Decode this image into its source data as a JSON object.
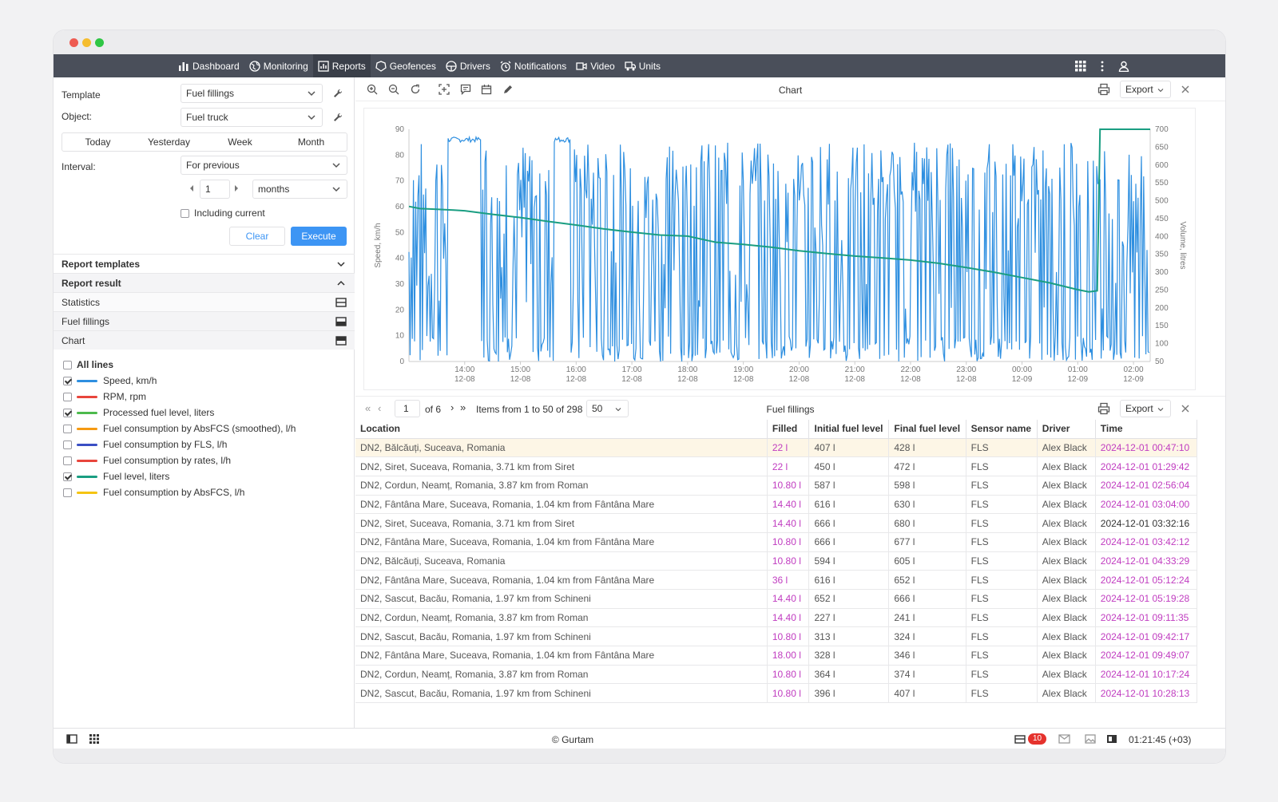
{
  "colors": {
    "nav_bg": "#4a4f5a",
    "accent": "#3d95f4",
    "speed": "#2e8fe0",
    "fuel": "#1a9e82",
    "pink": "#c03cc0"
  },
  "nav": {
    "items": [
      {
        "label": "Dashboard",
        "icon": "bar-chart-icon"
      },
      {
        "label": "Monitoring",
        "icon": "globe-icon"
      },
      {
        "label": "Reports",
        "icon": "report-icon"
      },
      {
        "label": "Geofences",
        "icon": "geofence-icon"
      },
      {
        "label": "Drivers",
        "icon": "steering-wheel-icon"
      },
      {
        "label": "Notifications",
        "icon": "alarm-icon"
      },
      {
        "label": "Video",
        "icon": "video-icon"
      },
      {
        "label": "Units",
        "icon": "truck-icon"
      }
    ]
  },
  "form": {
    "template_label": "Template",
    "template_value": "Fuel fillings",
    "object_label": "Object:",
    "object_value": "Fuel truck",
    "periods": [
      "Today",
      "Yesterday",
      "Week",
      "Month"
    ],
    "interval_label": "Interval:",
    "interval_value": "For previous",
    "count": "1",
    "unit": "months",
    "including_current": "Including current",
    "clear": "Clear",
    "execute": "Execute"
  },
  "sections": {
    "report_templates": "Report templates",
    "report_result": "Report result",
    "statistics": "Statistics",
    "fuel_fillings": "Fuel fillings",
    "chart": "Chart"
  },
  "legend": {
    "all_lines": "All lines",
    "items": [
      {
        "label": "Speed, km/h",
        "checked": true,
        "color": "#2e8fe0"
      },
      {
        "label": "RPM, rpm",
        "checked": false,
        "color": "#e8453c"
      },
      {
        "label": "Processed fuel level, liters",
        "checked": true,
        "color": "#4cba4c"
      },
      {
        "label": "Fuel consumption by AbsFCS (smoothed), l/h",
        "checked": false,
        "color": "#f59a12"
      },
      {
        "label": "Fuel consumption by FLS, l/h",
        "checked": false,
        "color": "#3a4fc4"
      },
      {
        "label": "Fuel consumption by rates, l/h",
        "checked": false,
        "color": "#e8453c"
      },
      {
        "label": "Fuel level, liters",
        "checked": true,
        "color": "#1a9e82"
      },
      {
        "label": "Fuel consumption by AbsFCS, l/h",
        "checked": false,
        "color": "#f5c412"
      }
    ]
  },
  "chart_panel": {
    "title": "Chart",
    "export": "Export"
  },
  "chart_data": {
    "type": "line",
    "ylabel": "Speed, km/h",
    "y2label": "Volume, litres",
    "ylim": [
      0,
      90
    ],
    "y2lim": [
      50,
      700
    ],
    "y_ticks": [
      "0",
      "10",
      "20",
      "30",
      "40",
      "50",
      "60",
      "70",
      "80",
      "90"
    ],
    "y2_ticks": [
      "50",
      "100",
      "150",
      "200",
      "250",
      "300",
      "350",
      "400",
      "450",
      "500",
      "550",
      "600",
      "650",
      "700"
    ],
    "x_ticks": [
      {
        "t": "14:00",
        "d": "12-08"
      },
      {
        "t": "15:00",
        "d": "12-08"
      },
      {
        "t": "16:00",
        "d": "12-08"
      },
      {
        "t": "17:00",
        "d": "12-08"
      },
      {
        "t": "18:00",
        "d": "12-08"
      },
      {
        "t": "19:00",
        "d": "12-08"
      },
      {
        "t": "20:00",
        "d": "12-08"
      },
      {
        "t": "21:00",
        "d": "12-08"
      },
      {
        "t": "22:00",
        "d": "12-08"
      },
      {
        "t": "23:00",
        "d": "12-08"
      },
      {
        "t": "00:00",
        "d": "12-09"
      },
      {
        "t": "01:00",
        "d": "12-09"
      },
      {
        "t": "02:00",
        "d": "12-09"
      }
    ],
    "series": [
      {
        "name": "Fuel level, liters",
        "axis": "right",
        "x": [
          13.0,
          13.2,
          13.5,
          13.8,
          14.0,
          14.5,
          15.0,
          15.5,
          16.0,
          16.5,
          17.0,
          17.5,
          18.0,
          18.5,
          19.0,
          19.5,
          20.0,
          20.5,
          21.0,
          21.5,
          22.0,
          22.5,
          23.0,
          23.5,
          24.0,
          24.5,
          25.0,
          25.2,
          25.35,
          25.4,
          26.3
        ],
        "values": [
          484,
          478,
          476,
          474,
          472,
          462,
          453,
          442,
          432,
          421,
          412,
          404,
          401,
          384,
          378,
          370,
          360,
          352,
          345,
          340,
          334,
          325,
          313,
          300,
          285,
          270,
          251,
          245,
          248,
          700,
          700
        ]
      },
      {
        "name": "Speed, km/h",
        "axis": "left",
        "note": "noisy speed trace between 0 and ~88 km/h"
      }
    ]
  },
  "pager": {
    "page": "1",
    "of": "of 6",
    "items": "Items from 1 to 50 of 298",
    "per_page": "50",
    "title": "Fuel fillings",
    "export": "Export"
  },
  "table": {
    "headers": [
      "Location",
      "Filled",
      "Initial fuel level",
      "Final fuel level",
      "Sensor name",
      "Driver",
      "Time"
    ],
    "rows": [
      [
        "DN2, Bălcăuți, Suceava, Romania",
        "22 l",
        "407 l",
        "428 l",
        "FLS",
        "Alex Black",
        "2024-12-01 00:47:10"
      ],
      [
        "DN2, Siret, Suceava, Romania, 3.71 km from Siret",
        "22 l",
        "450 l",
        "472 l",
        "FLS",
        "Alex Black",
        "2024-12-01 01:29:42"
      ],
      [
        "DN2, Cordun, Neamț, Romania, 3.87 km from Roman",
        "10.80 l",
        "587 l",
        "598 l",
        "FLS",
        "Alex Black",
        "2024-12-01 02:56:04"
      ],
      [
        "DN2, Fântâna Mare, Suceava, Romania, 1.04 km from Fântâna Mare",
        "14.40 l",
        "616 l",
        "630 l",
        "FLS",
        "Alex Black",
        "2024-12-01 03:04:00"
      ],
      [
        "DN2, Siret, Suceava, Romania, 3.71 km from Siret",
        "14.40 l",
        "666 l",
        "680 l",
        "FLS",
        "Alex Black",
        "2024-12-01 03:32:16"
      ],
      [
        "DN2, Fântâna Mare, Suceava, Romania, 1.04 km from Fântâna Mare",
        "10.80 l",
        "666 l",
        "677 l",
        "FLS",
        "Alex Black",
        "2024-12-01 03:42:12"
      ],
      [
        "DN2, Bălcăuți, Suceava, Romania",
        "10.80 l",
        "594 l",
        "605 l",
        "FLS",
        "Alex Black",
        "2024-12-01 04:33:29"
      ],
      [
        "DN2, Fântâna Mare, Suceava, Romania, 1.04 km from Fântâna Mare",
        "36 l",
        "616 l",
        "652 l",
        "FLS",
        "Alex Black",
        "2024-12-01 05:12:24"
      ],
      [
        "DN2, Sascut, Bacău, Romania, 1.97 km from Schineni",
        "14.40 l",
        "652 l",
        "666 l",
        "FLS",
        "Alex Black",
        "2024-12-01 05:19:28"
      ],
      [
        "DN2, Cordun, Neamț, Romania, 3.87 km from Roman",
        "14.40 l",
        "227 l",
        "241 l",
        "FLS",
        "Alex Black",
        "2024-12-01 09:11:35"
      ],
      [
        "DN2, Sascut, Bacău, Romania, 1.97 km from Schineni",
        "10.80 l",
        "313 l",
        "324 l",
        "FLS",
        "Alex Black",
        "2024-12-01 09:42:17"
      ],
      [
        "DN2, Fântâna Mare, Suceava, Romania, 1.04 km from Fântâna Mare",
        "18.00 l",
        "328 l",
        "346 l",
        "FLS",
        "Alex Black",
        "2024-12-01 09:49:07"
      ],
      [
        "DN2, Cordun, Neamț, Romania, 3.87 km from Roman",
        "10.80 l",
        "364 l",
        "374 l",
        "FLS",
        "Alex Black",
        "2024-12-01 10:17:24"
      ],
      [
        "DN2, Sascut, Bacău, Romania, 1.97 km from Schineni",
        "10.80 l",
        "396 l",
        "407 l",
        "FLS",
        "Alex Black",
        "2024-12-01 10:28:13"
      ]
    ]
  },
  "footer": {
    "copyright": "© Gurtam",
    "badge": "10",
    "clock": "01:21:45 (+03)"
  }
}
